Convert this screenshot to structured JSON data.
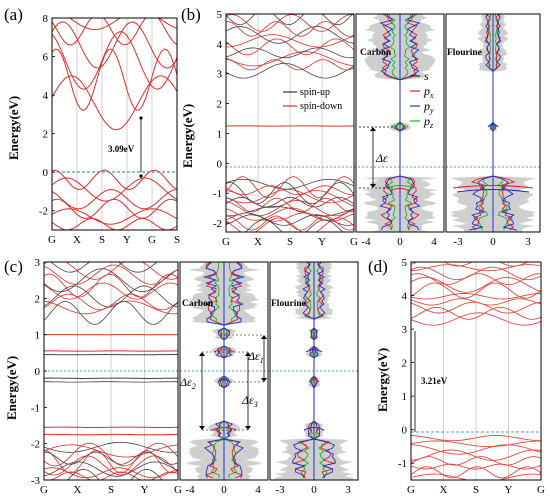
{
  "chart_data": [
    {
      "panel": "(a)",
      "type": "line",
      "ylabel": "Energy(eV)",
      "ylim": [
        -3,
        8
      ],
      "yticks": [
        "-2",
        "0",
        "2",
        "4",
        "6",
        "8"
      ],
      "xticks": [
        "G",
        "X",
        "S",
        "Y",
        "G",
        "S"
      ],
      "annotations": [
        "3.09eV"
      ],
      "band_gap_eV": 3.09,
      "colors": {
        "bands": "#d9302c",
        "fermi": "#1f7bbf"
      }
    },
    {
      "panel": "(b)",
      "type": "line",
      "ylabel": "Energy(eV)",
      "ylim": [
        -2.3,
        5
      ],
      "yticks": [
        "-2",
        "-1",
        "0",
        "1",
        "2",
        "3",
        "4",
        "5"
      ],
      "xticks": [
        "G",
        "X",
        "S",
        "Y",
        "G"
      ],
      "legend": [
        "spin-up",
        "spin-down"
      ],
      "pdos_panels": [
        {
          "label": "Carbon",
          "xticks": [
            "-4",
            "0",
            "4"
          ]
        },
        {
          "label": "Flourine",
          "xticks": [
            "-3",
            "0",
            "3"
          ]
        }
      ],
      "pdos_legend": [
        "s",
        "p",
        "p",
        "p"
      ],
      "pdos_legend_subscripts": [
        "",
        "x",
        "y",
        "z"
      ],
      "annotations": [
        "Δε"
      ],
      "colors": {
        "spin_up": "#333333",
        "spin_down": "#d9302c",
        "s": "#222222",
        "px": "#e02020",
        "py": "#2030c0",
        "pz": "#20b020",
        "dos_fill": "#cccccc"
      }
    },
    {
      "panel": "(c)",
      "type": "line",
      "ylabel": "Energy(eV)",
      "ylim": [
        -3,
        3
      ],
      "yticks": [
        "-3",
        "-2",
        "-1",
        "0",
        "1",
        "2",
        "3"
      ],
      "xticks": [
        "G",
        "X",
        "S",
        "Y",
        "G"
      ],
      "pdos_panels": [
        {
          "label": "Carbon",
          "xticks": [
            "-4",
            "0",
            "4"
          ]
        },
        {
          "label": "Flourine",
          "xticks": [
            "-3",
            "0",
            "3"
          ]
        }
      ],
      "annotations": [
        "Δε",
        "Δε",
        "Δε"
      ],
      "annotation_subscripts": [
        "1",
        "2",
        "3"
      ]
    },
    {
      "panel": "(d)",
      "type": "line",
      "ylabel": "Energy(eV)",
      "ylim": [
        -1.5,
        5
      ],
      "yticks": [
        "-1",
        "0",
        "1",
        "2",
        "3",
        "4",
        "5"
      ],
      "xticks": [
        "G",
        "X",
        "S",
        "Y",
        "G"
      ],
      "annotations": [
        "3.21eV"
      ],
      "band_gap_eV": 3.21
    }
  ]
}
